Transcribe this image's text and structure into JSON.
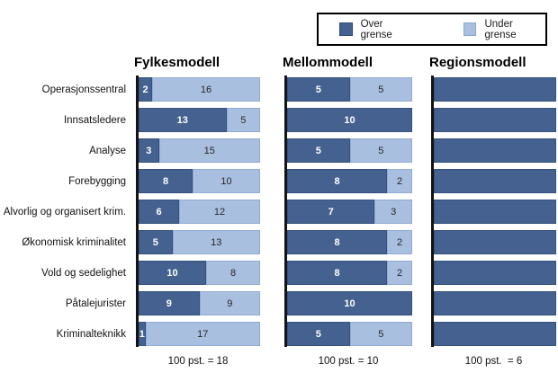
{
  "legend": {
    "items": [
      {
        "label": "Over grense",
        "color": "#44618f",
        "swatch": "dark-blue-square"
      },
      {
        "label": "Under grense",
        "color": "#a9bfdf",
        "swatch": "light-blue-square"
      }
    ]
  },
  "chart_data": {
    "type": "bar",
    "orientation": "horizontal",
    "stacked": true,
    "grid": false,
    "legend_position": "top-right",
    "colors": {
      "over": "#44618f",
      "under": "#a9bfdf"
    },
    "categories": [
      "Operasjonssentral",
      "Innsatsledere",
      "Analyse",
      "Forebygging",
      "Alvorlig og organisert krim.",
      "Økonomisk kriminalitet",
      "Vold og sedelighet",
      "Påtalejurister",
      "Kriminalteknikk"
    ],
    "panels": [
      {
        "title": "Fylkesmodell",
        "total": 18,
        "total_label": "100 pst. = 18",
        "show_value_labels": true,
        "series": [
          {
            "name": "Over grense",
            "values": [
              2,
              13,
              3,
              8,
              6,
              5,
              10,
              9,
              1
            ]
          },
          {
            "name": "Under grense",
            "values": [
              16,
              5,
              15,
              10,
              12,
              13,
              8,
              9,
              17
            ]
          }
        ]
      },
      {
        "title": "Mellommodell",
        "total": 10,
        "total_label": "100 pst. = 10",
        "show_value_labels": true,
        "series": [
          {
            "name": "Over grense",
            "values": [
              5,
              10,
              5,
              8,
              7,
              8,
              8,
              10,
              5
            ]
          },
          {
            "name": "Under grense",
            "values": [
              5,
              0,
              5,
              2,
              3,
              2,
              2,
              0,
              5
            ]
          }
        ]
      },
      {
        "title": "Regionsmodell",
        "total": 6,
        "total_label": "100 pst.  = 6",
        "show_value_labels": false,
        "series": [
          {
            "name": "Over grense",
            "values": [
              6,
              6,
              6,
              6,
              6,
              6,
              6,
              6,
              6
            ]
          },
          {
            "name": "Under grense",
            "values": [
              0,
              0,
              0,
              0,
              0,
              0,
              0,
              0,
              0
            ]
          }
        ]
      }
    ]
  }
}
